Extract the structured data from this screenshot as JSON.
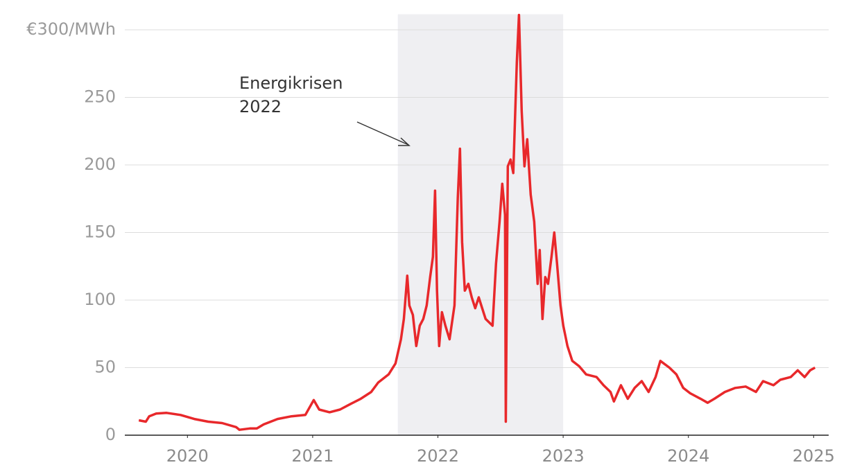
{
  "chart_data": {
    "type": "line",
    "yticks": [
      0,
      50,
      100,
      150,
      200,
      250,
      {
        "value": 300,
        "label": "€300/MWh"
      }
    ],
    "ylim": [
      0,
      312
    ],
    "xticks": [
      2020,
      2021,
      2022,
      2023,
      2024,
      2025
    ],
    "xlim": [
      2019.5,
      2025.12
    ],
    "grid": true,
    "highlight": [
      2021.68,
      2023.0
    ],
    "annotation": [
      "Energikrisen",
      "2022"
    ],
    "series": [
      {
        "color": "#e8282b",
        "x": [
          2019.612,
          2019.668,
          2019.695,
          2019.751,
          2019.834,
          2019.945,
          2020.055,
          2020.166,
          2020.277,
          2020.388,
          2020.415,
          2020.498,
          2020.554,
          2020.609,
          2020.72,
          2020.831,
          2020.941,
          2021.008,
          2021.052,
          2021.135,
          2021.218,
          2021.301,
          2021.384,
          2021.467,
          2021.523,
          2021.606,
          2021.661,
          2021.705,
          2021.728,
          2021.755,
          2021.772,
          2021.8,
          2021.827,
          2021.855,
          2021.883,
          2021.91,
          2021.938,
          2021.96,
          2021.977,
          2021.993,
          2022.01,
          2022.032,
          2022.06,
          2022.093,
          2022.132,
          2022.159,
          2022.176,
          2022.193,
          2022.215,
          2022.243,
          2022.27,
          2022.298,
          2022.326,
          2022.353,
          2022.381,
          2022.436,
          2022.464,
          2022.492,
          2022.514,
          2022.536,
          2022.542,
          2022.558,
          2022.58,
          2022.602,
          2022.63,
          2022.647,
          2022.669,
          2022.691,
          2022.713,
          2022.741,
          2022.769,
          2022.796,
          2022.813,
          2022.835,
          2022.857,
          2022.879,
          2022.907,
          2022.929,
          2022.951,
          2022.979,
          2023.001,
          2023.034,
          2023.073,
          2023.128,
          2023.184,
          2023.267,
          2023.322,
          2023.378,
          2023.405,
          2023.461,
          2023.516,
          2023.571,
          2023.627,
          2023.682,
          2023.738,
          2023.776,
          2023.848,
          2023.904,
          2023.959,
          2024.014,
          2024.097,
          2024.153,
          2024.208,
          2024.291,
          2024.374,
          2024.457,
          2024.54,
          2024.596,
          2024.679,
          2024.734,
          2024.817,
          2024.873,
          2024.928,
          2024.972,
          2025.011
        ],
        "values": [
          11,
          10,
          14,
          16,
          16.5,
          15,
          12,
          10,
          9,
          6,
          4,
          5,
          5,
          8,
          12,
          14,
          15,
          26,
          19,
          17,
          19,
          23,
          27,
          32,
          39,
          45,
          53,
          71,
          86,
          118,
          96,
          89,
          66,
          81,
          86,
          96,
          117,
          132,
          181,
          107,
          66,
          91,
          81,
          71,
          96,
          176,
          212,
          143,
          107,
          112,
          102,
          94,
          102,
          94,
          86,
          81,
          127,
          158,
          186,
          163,
          10,
          199,
          204,
          194,
          276,
          311,
          240,
          199,
          219,
          178,
          158,
          112,
          137,
          86,
          117,
          112,
          132,
          150,
          127,
          96,
          81,
          66,
          55,
          51,
          45,
          43,
          37,
          32,
          25,
          37,
          27,
          35,
          40,
          32,
          43,
          55,
          50,
          45,
          35,
          31,
          27,
          24,
          27,
          32,
          35,
          36,
          32,
          40,
          37,
          41,
          43,
          48,
          43,
          48,
          50
        ]
      }
    ]
  }
}
